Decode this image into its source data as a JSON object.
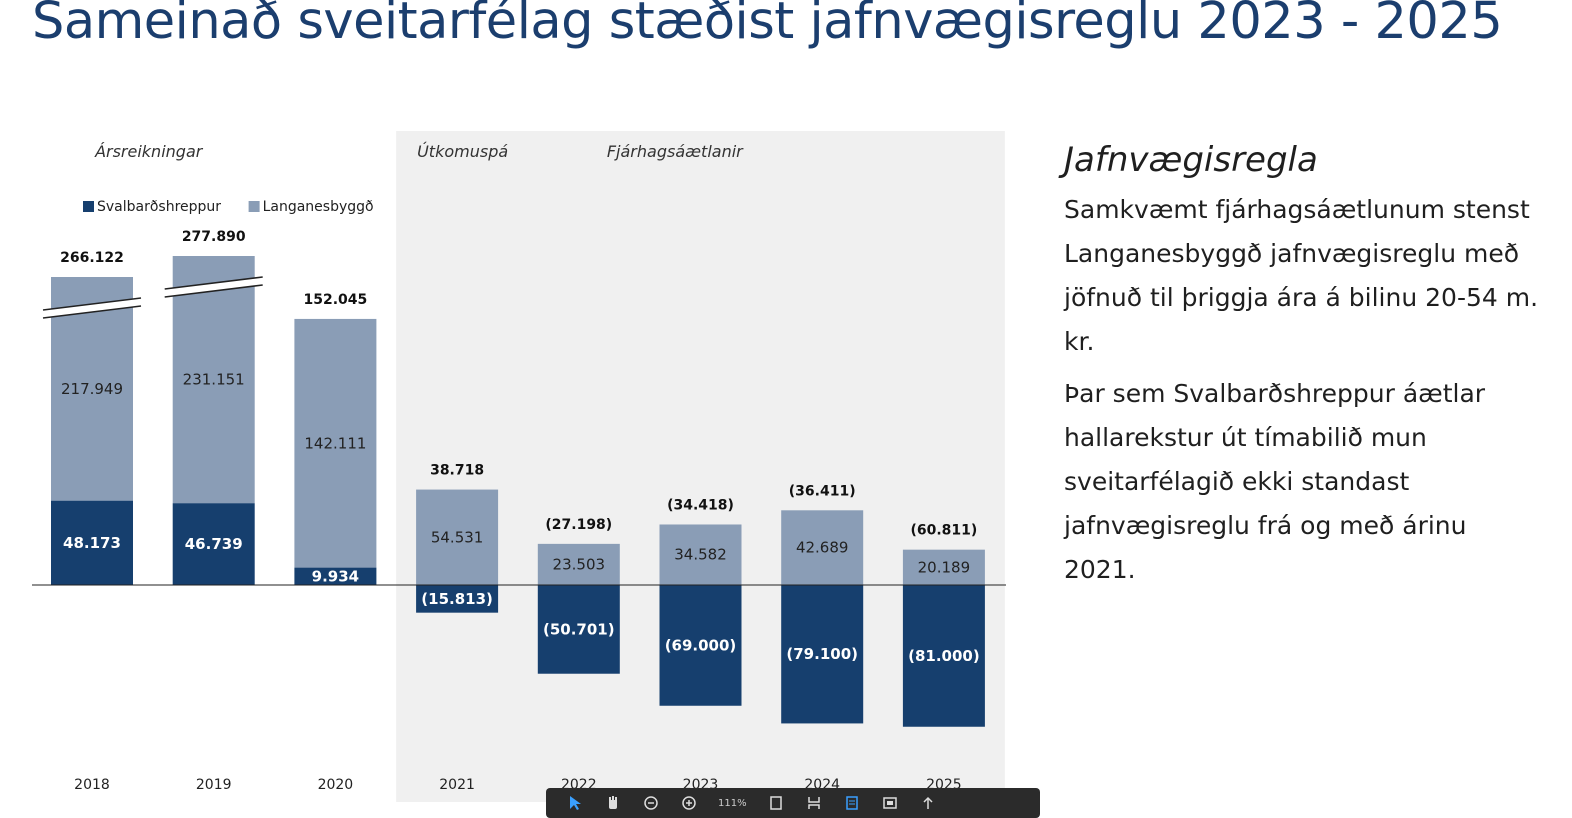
{
  "title": "Sameinað sveitarfélag stæðist jafnvægisreglu 2023 - 2025",
  "sidebar": {
    "heading": "Jafnvægisregla",
    "paragraphs": [
      "Samkvæmt fjárhagsáætlunum stenst Langanesbyggð jafnvægisreglu með jöfnuð til þriggja ára á bilinu 20-54 m. kr.",
      "Þar sem Svalbarðshreppur áætlar hallarekstur út tímabilið mun sveitarfélagið ekki standast jafnvægisreglu frá og með árinu 2021."
    ]
  },
  "chart_data": {
    "type": "bar",
    "stacked": true,
    "categories": [
      "2018",
      "2019",
      "2020",
      "2021",
      "2022",
      "2023",
      "2024",
      "2025"
    ],
    "series": [
      {
        "name": "Svalbarðshreppur",
        "color": "#163f6e",
        "values": [
          48.173,
          46.739,
          9.934,
          -15.813,
          -50.701,
          -69.0,
          -79.1,
          -81.0
        ],
        "labels": [
          "48.173",
          "46.739",
          "9.934",
          "(15.813)",
          "(50.701)",
          "(69.000)",
          "(79.100)",
          "(81.000)"
        ]
      },
      {
        "name": "Langanesbyggð",
        "color": "#8a9db6",
        "values": [
          217.949,
          231.151,
          142.111,
          54.531,
          23.503,
          34.582,
          42.689,
          20.189
        ],
        "labels": [
          "217.949",
          "231.151",
          "142.111",
          "54.531",
          "23.503",
          "34.582",
          "42.689",
          "20.189"
        ]
      }
    ],
    "totals": [
      266.122,
      277.89,
      152.045,
      38.718,
      -27.198,
      -34.418,
      -36.411,
      -60.811
    ],
    "total_labels": [
      "266.122",
      "277.890",
      "152.045",
      "38.718",
      "(27.198)",
      "(34.418)",
      "(36.411)",
      "(60.811)"
    ],
    "axis_breaks_on": [
      "2018",
      "2019"
    ],
    "section_labels": [
      {
        "text": "Ársreikningar",
        "over": [
          "2018",
          "2020"
        ]
      },
      {
        "text": "Útkomuspá",
        "over": [
          "2021",
          "2021"
        ]
      },
      {
        "text": "Fjárhagsáætlanir",
        "over": [
          "2022",
          "2025"
        ]
      }
    ],
    "shaded_range": [
      "2021",
      "2025"
    ],
    "shade_color": "#f0f0f0",
    "legend_position": "top-left",
    "grid": false
  },
  "toolbar": {
    "zoom_label": "111%"
  }
}
